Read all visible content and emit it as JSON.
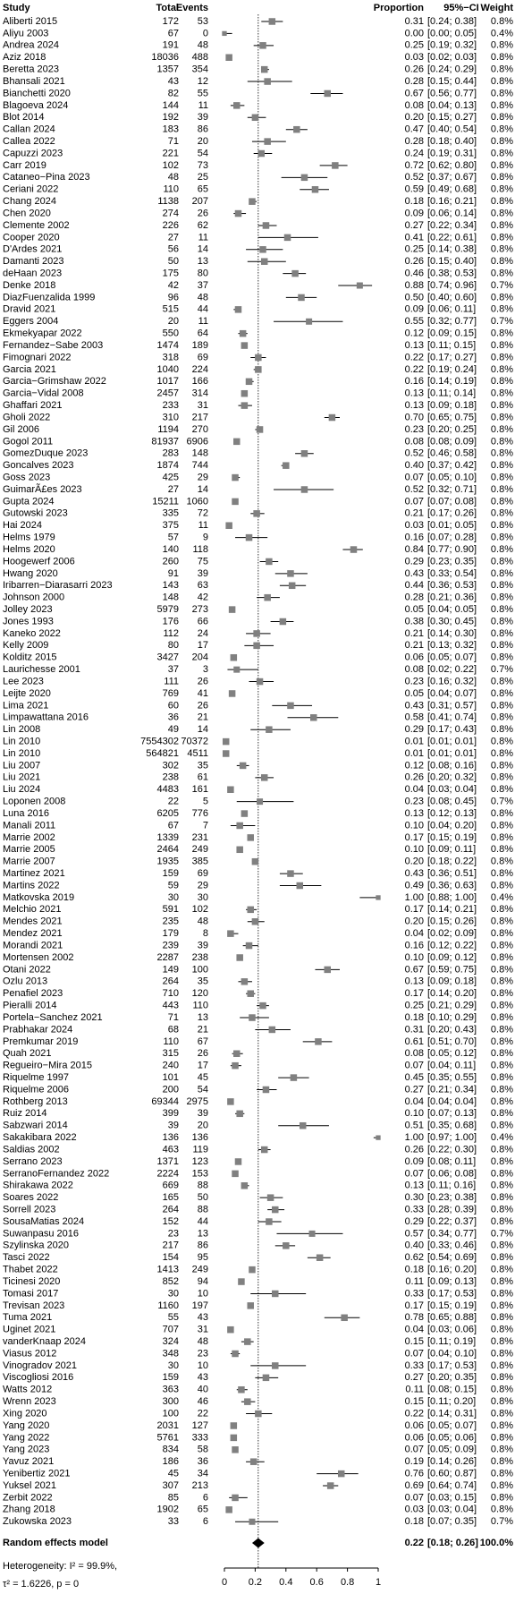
{
  "chart_data": {
    "type": "forest",
    "columns": [
      "Study",
      "Total",
      "Events",
      "Proportion",
      "95%−CI",
      "Weight"
    ],
    "studies": [
      "Aliberti 2015",
      "Aliyu 2003",
      "Andrea 2024",
      "Aziz 2018",
      "Beretta 2023",
      "Bhansali 2021",
      "Bianchetti 2020",
      "Blagoeva 2024",
      "Blot 2014",
      "Callan 2024",
      "Callea 2022",
      "Capuzzi 2023",
      "Carr 2019",
      "Cataneo−Pina 2023",
      "Ceriani 2022",
      "Chang 2024",
      "Chen 2020",
      "Clemente 2002",
      "Cooper 2020",
      "D'Ardes 2021",
      "Damanti 2023",
      "deHaan 2023",
      "Denke 2018",
      "DiazFuenzalida 1999",
      "Dravid 2021",
      "Eggers 2004",
      "Ekmekyapar 2022",
      "Fernandez−Sabe 2003",
      "Fimognari 2022",
      "Garcia 2021",
      "Garcia−Grimshaw 2022",
      "Garcia−Vidal 2008",
      "Ghaffari 2021",
      "Gholi 2022",
      "Gil 2006",
      "Gogol 2011",
      "GomezDuque 2023",
      "Goncalves 2023",
      "Goss 2023",
      "GuimarÃ£es 2023",
      "Gupta 2024",
      "Gutowski 2023",
      "Hai 2024",
      "Helms 1979",
      "Helms 2020",
      "Hoogewerf 2006",
      "Hwang 2020",
      "Iribarren−Diarasarri 2023",
      "Johnson 2000",
      "Jolley 2023",
      "Jones 1993",
      "Kaneko 2022",
      "Kelly 2009",
      "Kolditz 2015",
      "Laurichesse 2001",
      "Lee 2023",
      "Leijte 2020",
      "Lima 2021",
      "Limpawattana 2016",
      "Lin 2008",
      "Lin 2010",
      "Lin 2010",
      "Liu 2007",
      "Liu 2021",
      "Liu 2024",
      "Loponen 2008",
      "Luna 2016",
      "Manali 2011",
      "Marrie 2002",
      "Marrie 2005",
      "Marrie 2007",
      "Martinez 2021",
      "Martins 2022",
      "Matkovska 2019",
      "Melchio 2021",
      "Mendes 2021",
      "Mendez 2021",
      "Morandi 2021",
      "Mortensen 2002",
      "Otani 2022",
      "Ozlu 2013",
      "Penafiel 2023",
      "Pieralli 2014",
      "Portela−Sanchez 2021",
      "Prabhakar 2024",
      "Premkumar 2019",
      "Quah 2021",
      "Regueiro−Mira 2015",
      "Riquelme 1997",
      "Riquelme 2006",
      "Rothberg 2013",
      "Ruiz 2014",
      "Sabzwari 2014",
      "Sakakibara 2022",
      "Saldias 2002",
      "Serrano 2023",
      "SerranoFernandez 2022",
      "Shirakawa 2022",
      "Soares 2022",
      "Sorrell 2023",
      "SousaMatias 2024",
      "Suwanpasu 2016",
      "Szylinska 2020",
      "Tasci 2022",
      "Thabet 2022",
      "Ticinesi 2020",
      "Tomasi 2017",
      "Trevisan 2023",
      "Tuma 2021",
      "Uginet 2021",
      "vanderKnaap 2024",
      "Viasus 2012",
      "Vinogradov 2021",
      "Viscogliosi 2016",
      "Watts 2012",
      "Wrenn 2023",
      "Xing 2020",
      "Yang 2020",
      "Yang 2022",
      "Yang 2023",
      "Yavuz 2021",
      "Yenibertiz 2021",
      "Yuksel 2021",
      "Zerbit 2022",
      "Zhang 2018",
      "Zukowska 2023"
    ],
    "totals": [
      172,
      67,
      191,
      18036,
      1357,
      43,
      82,
      144,
      192,
      183,
      71,
      221,
      102,
      48,
      110,
      1138,
      274,
      226,
      27,
      56,
      50,
      175,
      42,
      96,
      515,
      20,
      550,
      1474,
      318,
      1040,
      1017,
      2457,
      233,
      310,
      1194,
      81937,
      283,
      1874,
      425,
      27,
      15211,
      335,
      375,
      57,
      140,
      260,
      91,
      143,
      148,
      5979,
      176,
      112,
      80,
      3427,
      37,
      111,
      769,
      60,
      36,
      49,
      7554302,
      564821,
      302,
      238,
      4483,
      22,
      6205,
      67,
      1339,
      2464,
      1935,
      159,
      59,
      30,
      591,
      235,
      179,
      239,
      2287,
      149,
      264,
      710,
      443,
      71,
      68,
      110,
      315,
      240,
      101,
      200,
      69344,
      399,
      39,
      136,
      463,
      1371,
      2224,
      669,
      165,
      264,
      152,
      23,
      217,
      154,
      1413,
      852,
      30,
      1160,
      55,
      707,
      324,
      348,
      30,
      159,
      363,
      300,
      100,
      2031,
      5761,
      834,
      186,
      45,
      307,
      85,
      1902,
      33
    ],
    "events": [
      53,
      0,
      48,
      488,
      354,
      12,
      55,
      11,
      39,
      86,
      20,
      54,
      73,
      25,
      65,
      207,
      26,
      62,
      11,
      14,
      13,
      80,
      37,
      48,
      44,
      11,
      64,
      189,
      69,
      224,
      166,
      314,
      31,
      217,
      270,
      6906,
      148,
      744,
      29,
      14,
      1060,
      72,
      11,
      9,
      118,
      75,
      39,
      63,
      42,
      273,
      66,
      24,
      17,
      204,
      3,
      26,
      41,
      26,
      21,
      14,
      70372,
      4511,
      35,
      61,
      161,
      5,
      776,
      7,
      231,
      249,
      385,
      69,
      29,
      30,
      102,
      48,
      8,
      39,
      238,
      100,
      35,
      120,
      110,
      13,
      21,
      67,
      26,
      17,
      45,
      54,
      2975,
      39,
      20,
      136,
      119,
      123,
      153,
      88,
      50,
      88,
      44,
      13,
      86,
      95,
      249,
      94,
      10,
      197,
      43,
      31,
      48,
      23,
      10,
      43,
      40,
      46,
      22,
      127,
      333,
      58,
      36,
      34,
      213,
      6,
      65,
      6
    ],
    "values": [
      0.31,
      0.0,
      0.25,
      0.03,
      0.26,
      0.28,
      0.67,
      0.08,
      0.2,
      0.47,
      0.28,
      0.24,
      0.72,
      0.52,
      0.59,
      0.18,
      0.09,
      0.27,
      0.41,
      0.25,
      0.26,
      0.46,
      0.88,
      0.5,
      0.09,
      0.55,
      0.12,
      0.13,
      0.22,
      0.22,
      0.16,
      0.13,
      0.13,
      0.7,
      0.23,
      0.08,
      0.52,
      0.4,
      0.07,
      0.52,
      0.07,
      0.21,
      0.03,
      0.16,
      0.84,
      0.29,
      0.43,
      0.44,
      0.28,
      0.05,
      0.38,
      0.21,
      0.21,
      0.06,
      0.08,
      0.23,
      0.05,
      0.43,
      0.58,
      0.29,
      0.01,
      0.01,
      0.12,
      0.26,
      0.04,
      0.23,
      0.13,
      0.1,
      0.17,
      0.1,
      0.2,
      0.43,
      0.49,
      1.0,
      0.17,
      0.2,
      0.04,
      0.16,
      0.1,
      0.67,
      0.13,
      0.17,
      0.25,
      0.18,
      0.31,
      0.61,
      0.08,
      0.07,
      0.45,
      0.27,
      0.04,
      0.1,
      0.51,
      1.0,
      0.26,
      0.09,
      0.07,
      0.13,
      0.3,
      0.33,
      0.29,
      0.57,
      0.4,
      0.62,
      0.18,
      0.11,
      0.33,
      0.17,
      0.78,
      0.04,
      0.15,
      0.07,
      0.33,
      0.27,
      0.11,
      0.15,
      0.22,
      0.06,
      0.06,
      0.07,
      0.19,
      0.76,
      0.69,
      0.07,
      0.03,
      0.18
    ],
    "value_labels": [
      "0.31",
      "0.00",
      "0.25",
      "0.03",
      "0.26",
      "0.28",
      "0.67",
      "0.08",
      "0.20",
      "0.47",
      "0.28",
      "0.24",
      "0.72",
      "0.52",
      "0.59",
      "0.18",
      "0.09",
      "0.27",
      "0.41",
      "0.25",
      "0.26",
      "0.46",
      "0.88",
      "0.50",
      "0.09",
      "0.55",
      "0.12",
      "0.13",
      "0.22",
      "0.22",
      "0.16",
      "0.13",
      "0.13",
      "0.70",
      "0.23",
      "0.08",
      "0.52",
      "0.40",
      "0.07",
      "0.52",
      "0.07",
      "0.21",
      "0.03",
      "0.16",
      "0.84",
      "0.29",
      "0.43",
      "0.44",
      "0.28",
      "0.05",
      "0.38",
      "0.21",
      "0.21",
      "0.06",
      "0.08",
      "0.23",
      "0.05",
      "0.43",
      "0.58",
      "0.29",
      "0.01",
      "0.01",
      "0.12",
      "0.26",
      "0.04",
      "0.23",
      "0.13",
      "0.10",
      "0.17",
      "0.10",
      "0.20",
      "0.43",
      "0.49",
      "1.00",
      "0.17",
      "0.20",
      "0.04",
      "0.16",
      "0.10",
      "0.67",
      "0.13",
      "0.17",
      "0.25",
      "0.18",
      "0.31",
      "0.61",
      "0.08",
      "0.07",
      "0.45",
      "0.27",
      "0.04",
      "0.10",
      "0.51",
      "1.00",
      "0.26",
      "0.09",
      "0.07",
      "0.13",
      "0.30",
      "0.33",
      "0.29",
      "0.57",
      "0.40",
      "0.62",
      "0.18",
      "0.11",
      "0.33",
      "0.17",
      "0.78",
      "0.04",
      "0.15",
      "0.07",
      "0.33",
      "0.27",
      "0.11",
      "0.15",
      "0.22",
      "0.06",
      "0.06",
      "0.07",
      "0.19",
      "0.76",
      "0.69",
      "0.07",
      "0.03",
      "0.18"
    ],
    "lower": [
      0.24,
      0.0,
      0.19,
      0.02,
      0.24,
      0.15,
      0.56,
      0.04,
      0.15,
      0.4,
      0.18,
      0.19,
      0.62,
      0.37,
      0.49,
      0.16,
      0.06,
      0.22,
      0.22,
      0.14,
      0.15,
      0.38,
      0.74,
      0.4,
      0.06,
      0.32,
      0.09,
      0.11,
      0.17,
      0.19,
      0.14,
      0.11,
      0.09,
      0.65,
      0.2,
      0.08,
      0.46,
      0.37,
      0.05,
      0.32,
      0.07,
      0.17,
      0.01,
      0.07,
      0.77,
      0.23,
      0.33,
      0.36,
      0.21,
      0.04,
      0.3,
      0.14,
      0.13,
      0.05,
      0.02,
      0.16,
      0.04,
      0.31,
      0.41,
      0.17,
      0.01,
      0.01,
      0.08,
      0.2,
      0.03,
      0.08,
      0.12,
      0.04,
      0.15,
      0.09,
      0.18,
      0.36,
      0.36,
      0.88,
      0.14,
      0.15,
      0.02,
      0.12,
      0.09,
      0.59,
      0.09,
      0.14,
      0.21,
      0.1,
      0.2,
      0.51,
      0.05,
      0.04,
      0.35,
      0.21,
      0.04,
      0.07,
      0.35,
      0.97,
      0.22,
      0.08,
      0.06,
      0.11,
      0.23,
      0.28,
      0.22,
      0.34,
      0.33,
      0.54,
      0.16,
      0.09,
      0.17,
      0.15,
      0.65,
      0.03,
      0.11,
      0.04,
      0.17,
      0.2,
      0.08,
      0.11,
      0.14,
      0.05,
      0.05,
      0.05,
      0.14,
      0.6,
      0.64,
      0.03,
      0.03,
      0.07
    ],
    "upper": [
      0.38,
      0.05,
      0.32,
      0.03,
      0.29,
      0.44,
      0.77,
      0.13,
      0.27,
      0.54,
      0.4,
      0.31,
      0.8,
      0.67,
      0.68,
      0.21,
      0.14,
      0.34,
      0.61,
      0.38,
      0.4,
      0.53,
      0.96,
      0.6,
      0.11,
      0.77,
      0.15,
      0.15,
      0.27,
      0.24,
      0.19,
      0.14,
      0.18,
      0.75,
      0.25,
      0.09,
      0.58,
      0.42,
      0.1,
      0.71,
      0.08,
      0.26,
      0.05,
      0.28,
      0.9,
      0.35,
      0.54,
      0.53,
      0.36,
      0.05,
      0.45,
      0.3,
      0.32,
      0.07,
      0.22,
      0.32,
      0.07,
      0.57,
      0.74,
      0.43,
      0.01,
      0.01,
      0.16,
      0.32,
      0.04,
      0.45,
      0.13,
      0.2,
      0.19,
      0.11,
      0.22,
      0.51,
      0.63,
      1.0,
      0.21,
      0.26,
      0.09,
      0.22,
      0.12,
      0.75,
      0.18,
      0.2,
      0.29,
      0.29,
      0.43,
      0.7,
      0.12,
      0.11,
      0.55,
      0.34,
      0.04,
      0.13,
      0.68,
      1.0,
      0.3,
      0.11,
      0.08,
      0.16,
      0.38,
      0.39,
      0.37,
      0.77,
      0.46,
      0.69,
      0.2,
      0.13,
      0.53,
      0.19,
      0.88,
      0.06,
      0.19,
      0.1,
      0.53,
      0.35,
      0.15,
      0.2,
      0.31,
      0.07,
      0.06,
      0.09,
      0.26,
      0.87,
      0.74,
      0.15,
      0.04,
      0.35
    ],
    "ci_labels": [
      "[0.24; 0.38]",
      "[0.00; 0.05]",
      "[0.19; 0.32]",
      "[0.02; 0.03]",
      "[0.24; 0.29]",
      "[0.15; 0.44]",
      "[0.56; 0.77]",
      "[0.04; 0.13]",
      "[0.15; 0.27]",
      "[0.40; 0.54]",
      "[0.18; 0.40]",
      "[0.19; 0.31]",
      "[0.62; 0.80]",
      "[0.37; 0.67]",
      "[0.49; 0.68]",
      "[0.16; 0.21]",
      "[0.06; 0.14]",
      "[0.22; 0.34]",
      "[0.22; 0.61]",
      "[0.14; 0.38]",
      "[0.15; 0.40]",
      "[0.38; 0.53]",
      "[0.74; 0.96]",
      "[0.40; 0.60]",
      "[0.06; 0.11]",
      "[0.32; 0.77]",
      "[0.09; 0.15]",
      "[0.11; 0.15]",
      "[0.17; 0.27]",
      "[0.19; 0.24]",
      "[0.14; 0.19]",
      "[0.11; 0.14]",
      "[0.09; 0.18]",
      "[0.65; 0.75]",
      "[0.20; 0.25]",
      "[0.08; 0.09]",
      "[0.46; 0.58]",
      "[0.37; 0.42]",
      "[0.05; 0.10]",
      "[0.32; 0.71]",
      "[0.07; 0.08]",
      "[0.17; 0.26]",
      "[0.01; 0.05]",
      "[0.07; 0.28]",
      "[0.77; 0.90]",
      "[0.23; 0.35]",
      "[0.33; 0.54]",
      "[0.36; 0.53]",
      "[0.21; 0.36]",
      "[0.04; 0.05]",
      "[0.30; 0.45]",
      "[0.14; 0.30]",
      "[0.13; 0.32]",
      "[0.05; 0.07]",
      "[0.02; 0.22]",
      "[0.16; 0.32]",
      "[0.04; 0.07]",
      "[0.31; 0.57]",
      "[0.41; 0.74]",
      "[0.17; 0.43]",
      "[0.01; 0.01]",
      "[0.01; 0.01]",
      "[0.08; 0.16]",
      "[0.20; 0.32]",
      "[0.03; 0.04]",
      "[0.08; 0.45]",
      "[0.12; 0.13]",
      "[0.04; 0.20]",
      "[0.15; 0.19]",
      "[0.09; 0.11]",
      "[0.18; 0.22]",
      "[0.36; 0.51]",
      "[0.36; 0.63]",
      "[0.88; 1.00]",
      "[0.14; 0.21]",
      "[0.15; 0.26]",
      "[0.02; 0.09]",
      "[0.12; 0.22]",
      "[0.09; 0.12]",
      "[0.59; 0.75]",
      "[0.09; 0.18]",
      "[0.14; 0.20]",
      "[0.21; 0.29]",
      "[0.10; 0.29]",
      "[0.20; 0.43]",
      "[0.51; 0.70]",
      "[0.05; 0.12]",
      "[0.04; 0.11]",
      "[0.35; 0.55]",
      "[0.21; 0.34]",
      "[0.04; 0.04]",
      "[0.07; 0.13]",
      "[0.35; 0.68]",
      "[0.97; 1.00]",
      "[0.22; 0.30]",
      "[0.08; 0.11]",
      "[0.06; 0.08]",
      "[0.11; 0.16]",
      "[0.23; 0.38]",
      "[0.28; 0.39]",
      "[0.22; 0.37]",
      "[0.34; 0.77]",
      "[0.33; 0.46]",
      "[0.54; 0.69]",
      "[0.16; 0.20]",
      "[0.09; 0.13]",
      "[0.17; 0.53]",
      "[0.15; 0.19]",
      "[0.65; 0.88]",
      "[0.03; 0.06]",
      "[0.11; 0.19]",
      "[0.04; 0.10]",
      "[0.17; 0.53]",
      "[0.20; 0.35]",
      "[0.08; 0.15]",
      "[0.11; 0.20]",
      "[0.14; 0.31]",
      "[0.05; 0.07]",
      "[0.05; 0.06]",
      "[0.05; 0.09]",
      "[0.14; 0.26]",
      "[0.60; 0.87]",
      "[0.64; 0.74]",
      "[0.03; 0.15]",
      "[0.03; 0.04]",
      "[0.07; 0.35]"
    ],
    "weights": [
      0.8,
      0.4,
      0.8,
      0.8,
      0.8,
      0.8,
      0.8,
      0.8,
      0.8,
      0.8,
      0.8,
      0.8,
      0.8,
      0.8,
      0.8,
      0.8,
      0.8,
      0.8,
      0.8,
      0.8,
      0.8,
      0.8,
      0.7,
      0.8,
      0.8,
      0.7,
      0.8,
      0.8,
      0.8,
      0.8,
      0.8,
      0.8,
      0.8,
      0.8,
      0.8,
      0.8,
      0.8,
      0.8,
      0.8,
      0.8,
      0.8,
      0.8,
      0.8,
      0.8,
      0.8,
      0.8,
      0.8,
      0.8,
      0.8,
      0.8,
      0.8,
      0.8,
      0.8,
      0.8,
      0.7,
      0.8,
      0.8,
      0.8,
      0.8,
      0.8,
      0.8,
      0.8,
      0.8,
      0.8,
      0.8,
      0.7,
      0.8,
      0.8,
      0.8,
      0.8,
      0.8,
      0.8,
      0.8,
      0.4,
      0.8,
      0.8,
      0.8,
      0.8,
      0.8,
      0.8,
      0.8,
      0.8,
      0.8,
      0.8,
      0.8,
      0.8,
      0.8,
      0.8,
      0.8,
      0.8,
      0.8,
      0.8,
      0.8,
      0.4,
      0.8,
      0.8,
      0.8,
      0.8,
      0.8,
      0.8,
      0.8,
      0.7,
      0.8,
      0.8,
      0.8,
      0.8,
      0.8,
      0.8,
      0.8,
      0.8,
      0.8,
      0.8,
      0.8,
      0.8,
      0.8,
      0.8,
      0.8,
      0.8,
      0.8,
      0.8,
      0.8,
      0.8,
      0.8,
      0.8,
      0.8,
      0.7
    ],
    "weight_labels": [
      "0.8%",
      "0.4%",
      "0.8%",
      "0.8%",
      "0.8%",
      "0.8%",
      "0.8%",
      "0.8%",
      "0.8%",
      "0.8%",
      "0.8%",
      "0.8%",
      "0.8%",
      "0.8%",
      "0.8%",
      "0.8%",
      "0.8%",
      "0.8%",
      "0.8%",
      "0.8%",
      "0.8%",
      "0.8%",
      "0.7%",
      "0.8%",
      "0.8%",
      "0.7%",
      "0.8%",
      "0.8%",
      "0.8%",
      "0.8%",
      "0.8%",
      "0.8%",
      "0.8%",
      "0.8%",
      "0.8%",
      "0.8%",
      "0.8%",
      "0.8%",
      "0.8%",
      "0.8%",
      "0.8%",
      "0.8%",
      "0.8%",
      "0.8%",
      "0.8%",
      "0.8%",
      "0.8%",
      "0.8%",
      "0.8%",
      "0.8%",
      "0.8%",
      "0.8%",
      "0.8%",
      "0.8%",
      "0.7%",
      "0.8%",
      "0.8%",
      "0.8%",
      "0.8%",
      "0.8%",
      "0.8%",
      "0.8%",
      "0.8%",
      "0.8%",
      "0.8%",
      "0.7%",
      "0.8%",
      "0.8%",
      "0.8%",
      "0.8%",
      "0.8%",
      "0.8%",
      "0.8%",
      "0.4%",
      "0.8%",
      "0.8%",
      "0.8%",
      "0.8%",
      "0.8%",
      "0.8%",
      "0.8%",
      "0.8%",
      "0.8%",
      "0.8%",
      "0.8%",
      "0.8%",
      "0.8%",
      "0.8%",
      "0.8%",
      "0.8%",
      "0.8%",
      "0.8%",
      "0.8%",
      "0.4%",
      "0.8%",
      "0.8%",
      "0.8%",
      "0.8%",
      "0.8%",
      "0.8%",
      "0.8%",
      "0.7%",
      "0.8%",
      "0.8%",
      "0.8%",
      "0.8%",
      "0.8%",
      "0.8%",
      "0.8%",
      "0.8%",
      "0.8%",
      "0.8%",
      "0.8%",
      "0.8%",
      "0.8%",
      "0.8%",
      "0.8%",
      "0.8%",
      "0.8%",
      "0.8%",
      "0.8%",
      "0.8%",
      "0.8%",
      "0.8%",
      "0.8%",
      "0.7%"
    ],
    "color": "#808080",
    "summary": {
      "label": "Random effects model",
      "value": 0.22,
      "value_label": "0.22",
      "lower": 0.18,
      "upper": 0.26,
      "ci_label": "[0.18; 0.26]",
      "weight": 100,
      "weight_label": "100.0%"
    },
    "heterogeneity": [
      "Heterogeneity: I² = 99.9%,",
      "τ² = 1.6226, p = 0"
    ],
    "xlim": [
      0,
      1
    ],
    "xticks": [
      0,
      0.2,
      0.4,
      0.6,
      0.8,
      1
    ]
  }
}
